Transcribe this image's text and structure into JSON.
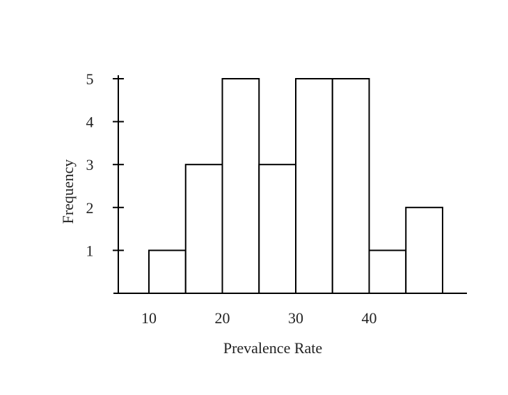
{
  "chart_data": {
    "type": "bar",
    "bins": [
      [
        10,
        15
      ],
      [
        15,
        20
      ],
      [
        20,
        25
      ],
      [
        25,
        30
      ],
      [
        30,
        35
      ],
      [
        35,
        40
      ],
      [
        40,
        45
      ],
      [
        45,
        50
      ]
    ],
    "values": [
      1,
      3,
      5,
      3,
      5,
      5,
      1,
      2
    ],
    "xlabel": "Prevalence Rate",
    "ylabel": "Frequency",
    "xticks": [
      10,
      20,
      30,
      40
    ],
    "xtick_labels": [
      "10",
      "20",
      "30",
      "40"
    ],
    "yticks": [
      1,
      2,
      3,
      4,
      5
    ],
    "ytick_labels": [
      "1",
      "2",
      "3",
      "4",
      "5"
    ],
    "xlim": [
      6,
      54
    ],
    "ylim": [
      0,
      5
    ],
    "grid": false,
    "legend": "none",
    "colors": {
      "bar_fill": "#ffffff",
      "bar_stroke": "#000000",
      "text": "#222222"
    }
  }
}
